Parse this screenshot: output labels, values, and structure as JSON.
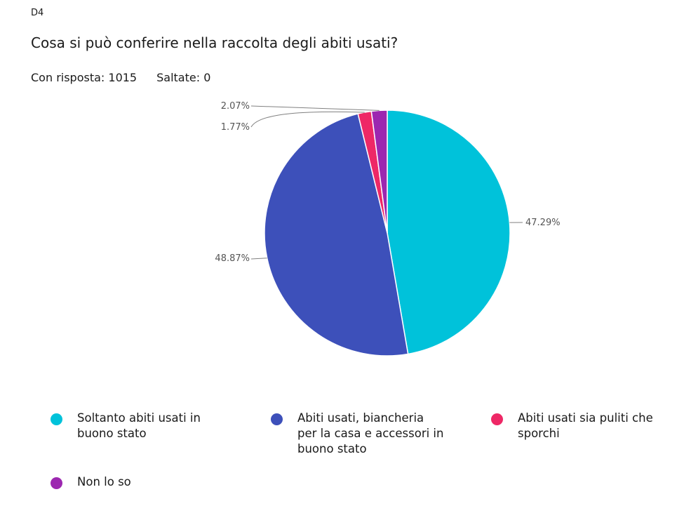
{
  "question": {
    "id": "D4",
    "title": "Cosa si può conferire nella raccolta degli abiti usati?",
    "answered": "Con risposta: 1015",
    "skipped": "Saltate: 0"
  },
  "chart_data": {
    "type": "pie",
    "slices": [
      {
        "label": "Soltanto abiti usati in buono stato",
        "value": 47.29,
        "display": "47.29%",
        "color": "#00C2DA"
      },
      {
        "label": "Abiti usati, biancheria per la casa e accessori in buono stato",
        "value": 48.87,
        "display": "48.87%",
        "color": "#3D50BA"
      },
      {
        "label": "Abiti usati sia puliti che sporchi",
        "value": 1.77,
        "display": "1.77%",
        "color": "#EE2866"
      },
      {
        "label": "Non lo so",
        "value": 2.07,
        "display": "2.07%",
        "color": "#9C27B0"
      }
    ]
  },
  "legend": {
    "items": [
      {
        "line1": "Soltanto abiti usati in",
        "line2": "buono stato",
        "line3": ""
      },
      {
        "line1": "Abiti usati, biancheria",
        "line2": "per la casa e accessori in",
        "line3": "buono stato"
      },
      {
        "line1": "Abiti usati sia puliti che",
        "line2": "sporchi",
        "line3": ""
      },
      {
        "line1": "Non lo so",
        "line2": "",
        "line3": ""
      }
    ]
  }
}
